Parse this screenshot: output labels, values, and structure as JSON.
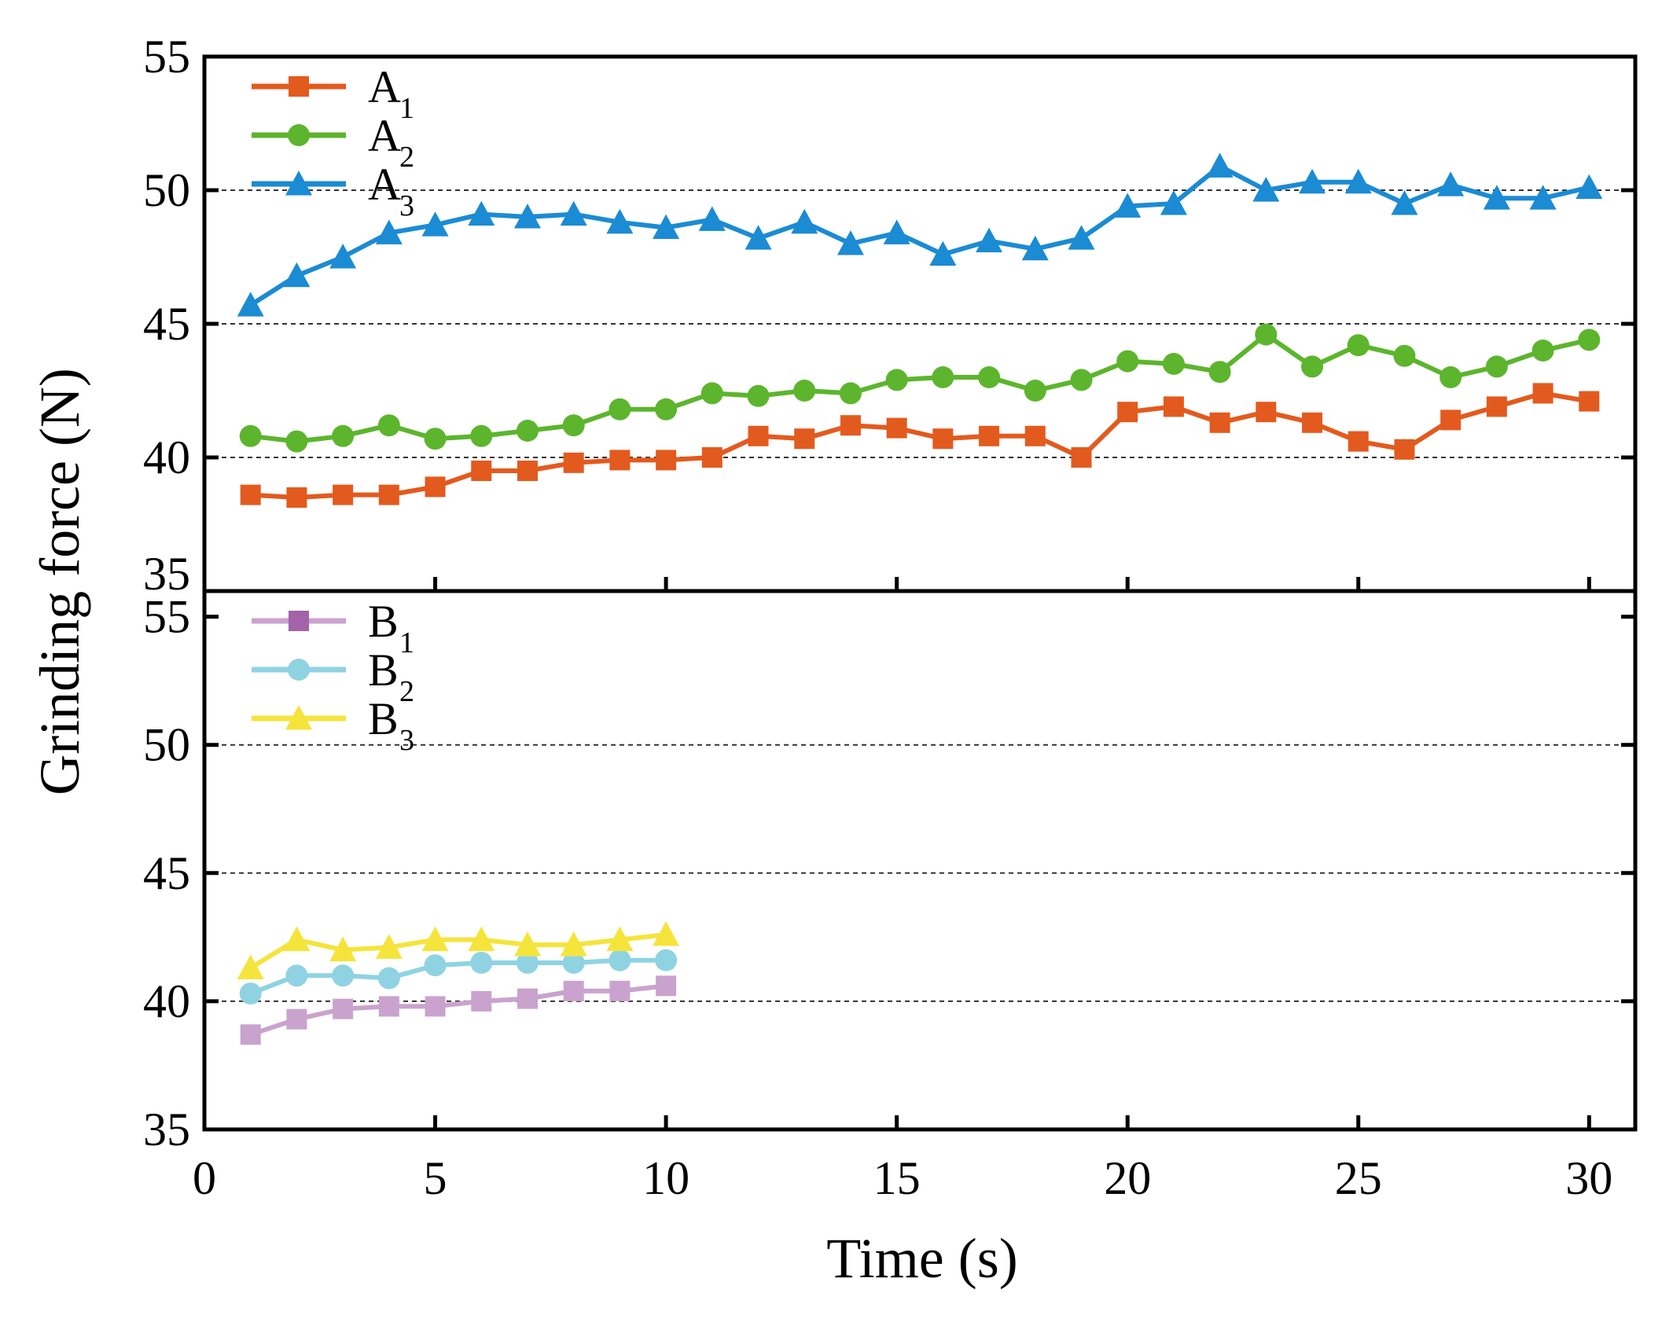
{
  "chart_data": {
    "type": "line",
    "xlabel": "Time (s)",
    "ylabel": "Grinding force (N)",
    "xlim": [
      0,
      31
    ],
    "xticks": [
      0,
      5,
      10,
      15,
      20,
      25,
      30
    ],
    "x_tick_labels": [
      "0",
      "5",
      "10",
      "15",
      "20",
      "25",
      "30"
    ],
    "grid": "dashed horizontal at 40, 45, 50",
    "panels": [
      {
        "name": "top",
        "ylim": [
          35,
          55
        ],
        "yticks": [
          35,
          40,
          45,
          50,
          55
        ],
        "y_tick_labels": [
          "35",
          "40",
          "45",
          "50",
          "55"
        ],
        "legend_position": "top-left",
        "series": [
          {
            "name": "A",
            "subscript": "1",
            "color": "#e35a1e",
            "marker": "square",
            "x": [
              1,
              2,
              3,
              4,
              5,
              6,
              7,
              8,
              9,
              10,
              11,
              12,
              13,
              14,
              15,
              16,
              17,
              18,
              19,
              20,
              21,
              22,
              23,
              24,
              25,
              26,
              27,
              28,
              29,
              30
            ],
            "values": [
              38.6,
              38.5,
              38.6,
              38.6,
              38.9,
              39.5,
              39.5,
              39.8,
              39.9,
              39.9,
              40.0,
              40.8,
              40.7,
              41.2,
              41.1,
              40.7,
              40.8,
              40.8,
              40.0,
              41.7,
              41.9,
              41.3,
              41.7,
              41.3,
              40.6,
              40.3,
              41.4,
              41.9,
              42.4,
              42.1
            ]
          },
          {
            "name": "A",
            "subscript": "2",
            "color": "#5cb52d",
            "marker": "circle",
            "x": [
              1,
              2,
              3,
              4,
              5,
              6,
              7,
              8,
              9,
              10,
              11,
              12,
              13,
              14,
              15,
              16,
              17,
              18,
              19,
              20,
              21,
              22,
              23,
              24,
              25,
              26,
              27,
              28,
              29,
              30
            ],
            "values": [
              40.8,
              40.6,
              40.8,
              41.2,
              40.7,
              40.8,
              41.0,
              41.2,
              41.8,
              41.8,
              42.4,
              42.3,
              42.5,
              42.4,
              42.9,
              43.0,
              43.0,
              42.5,
              42.9,
              43.6,
              43.5,
              43.2,
              44.6,
              43.4,
              44.2,
              43.8,
              43.0,
              43.4,
              44.0,
              44.4
            ]
          },
          {
            "name": "A",
            "subscript": "3",
            "color": "#1b8bd4",
            "marker": "triangle",
            "x": [
              1,
              2,
              3,
              4,
              5,
              6,
              7,
              8,
              9,
              10,
              11,
              12,
              13,
              14,
              15,
              16,
              17,
              18,
              19,
              20,
              21,
              22,
              23,
              24,
              25,
              26,
              27,
              28,
              29,
              30
            ],
            "values": [
              45.7,
              46.8,
              47.5,
              48.4,
              48.7,
              49.1,
              49.0,
              49.1,
              48.8,
              48.6,
              48.9,
              48.2,
              48.8,
              48.0,
              48.4,
              47.6,
              48.1,
              47.8,
              48.2,
              49.4,
              49.5,
              50.9,
              50.0,
              50.3,
              50.3,
              49.5,
              50.2,
              49.7,
              49.7,
              50.1
            ]
          }
        ]
      },
      {
        "name": "bottom",
        "ylim": [
          35,
          56
        ],
        "yticks": [
          35,
          40,
          45,
          50,
          55
        ],
        "y_tick_labels": [
          "35",
          "40",
          "45",
          "50",
          "55"
        ],
        "legend_position": "top-left",
        "series": [
          {
            "name": "B",
            "subscript": "1",
            "color": "#c9a3cd",
            "legend_color": "#a263a9",
            "marker": "square",
            "x": [
              1,
              2,
              3,
              4,
              5,
              6,
              7,
              8,
              9,
              10
            ],
            "values": [
              38.7,
              39.3,
              39.7,
              39.8,
              39.8,
              40.0,
              40.1,
              40.4,
              40.4,
              40.6
            ]
          },
          {
            "name": "B",
            "subscript": "2",
            "color": "#8fd3e2",
            "marker": "circle",
            "x": [
              1,
              2,
              3,
              4,
              5,
              6,
              7,
              8,
              9,
              10
            ],
            "values": [
              40.3,
              41.0,
              41.0,
              40.9,
              41.4,
              41.5,
              41.5,
              41.5,
              41.6,
              41.6
            ]
          },
          {
            "name": "B",
            "subscript": "3",
            "color": "#f5e43b",
            "marker": "triangle",
            "x": [
              1,
              2,
              3,
              4,
              5,
              6,
              7,
              8,
              9,
              10
            ],
            "values": [
              41.3,
              42.4,
              42.0,
              42.1,
              42.4,
              42.4,
              42.2,
              42.2,
              42.4,
              42.6
            ]
          }
        ]
      }
    ]
  }
}
